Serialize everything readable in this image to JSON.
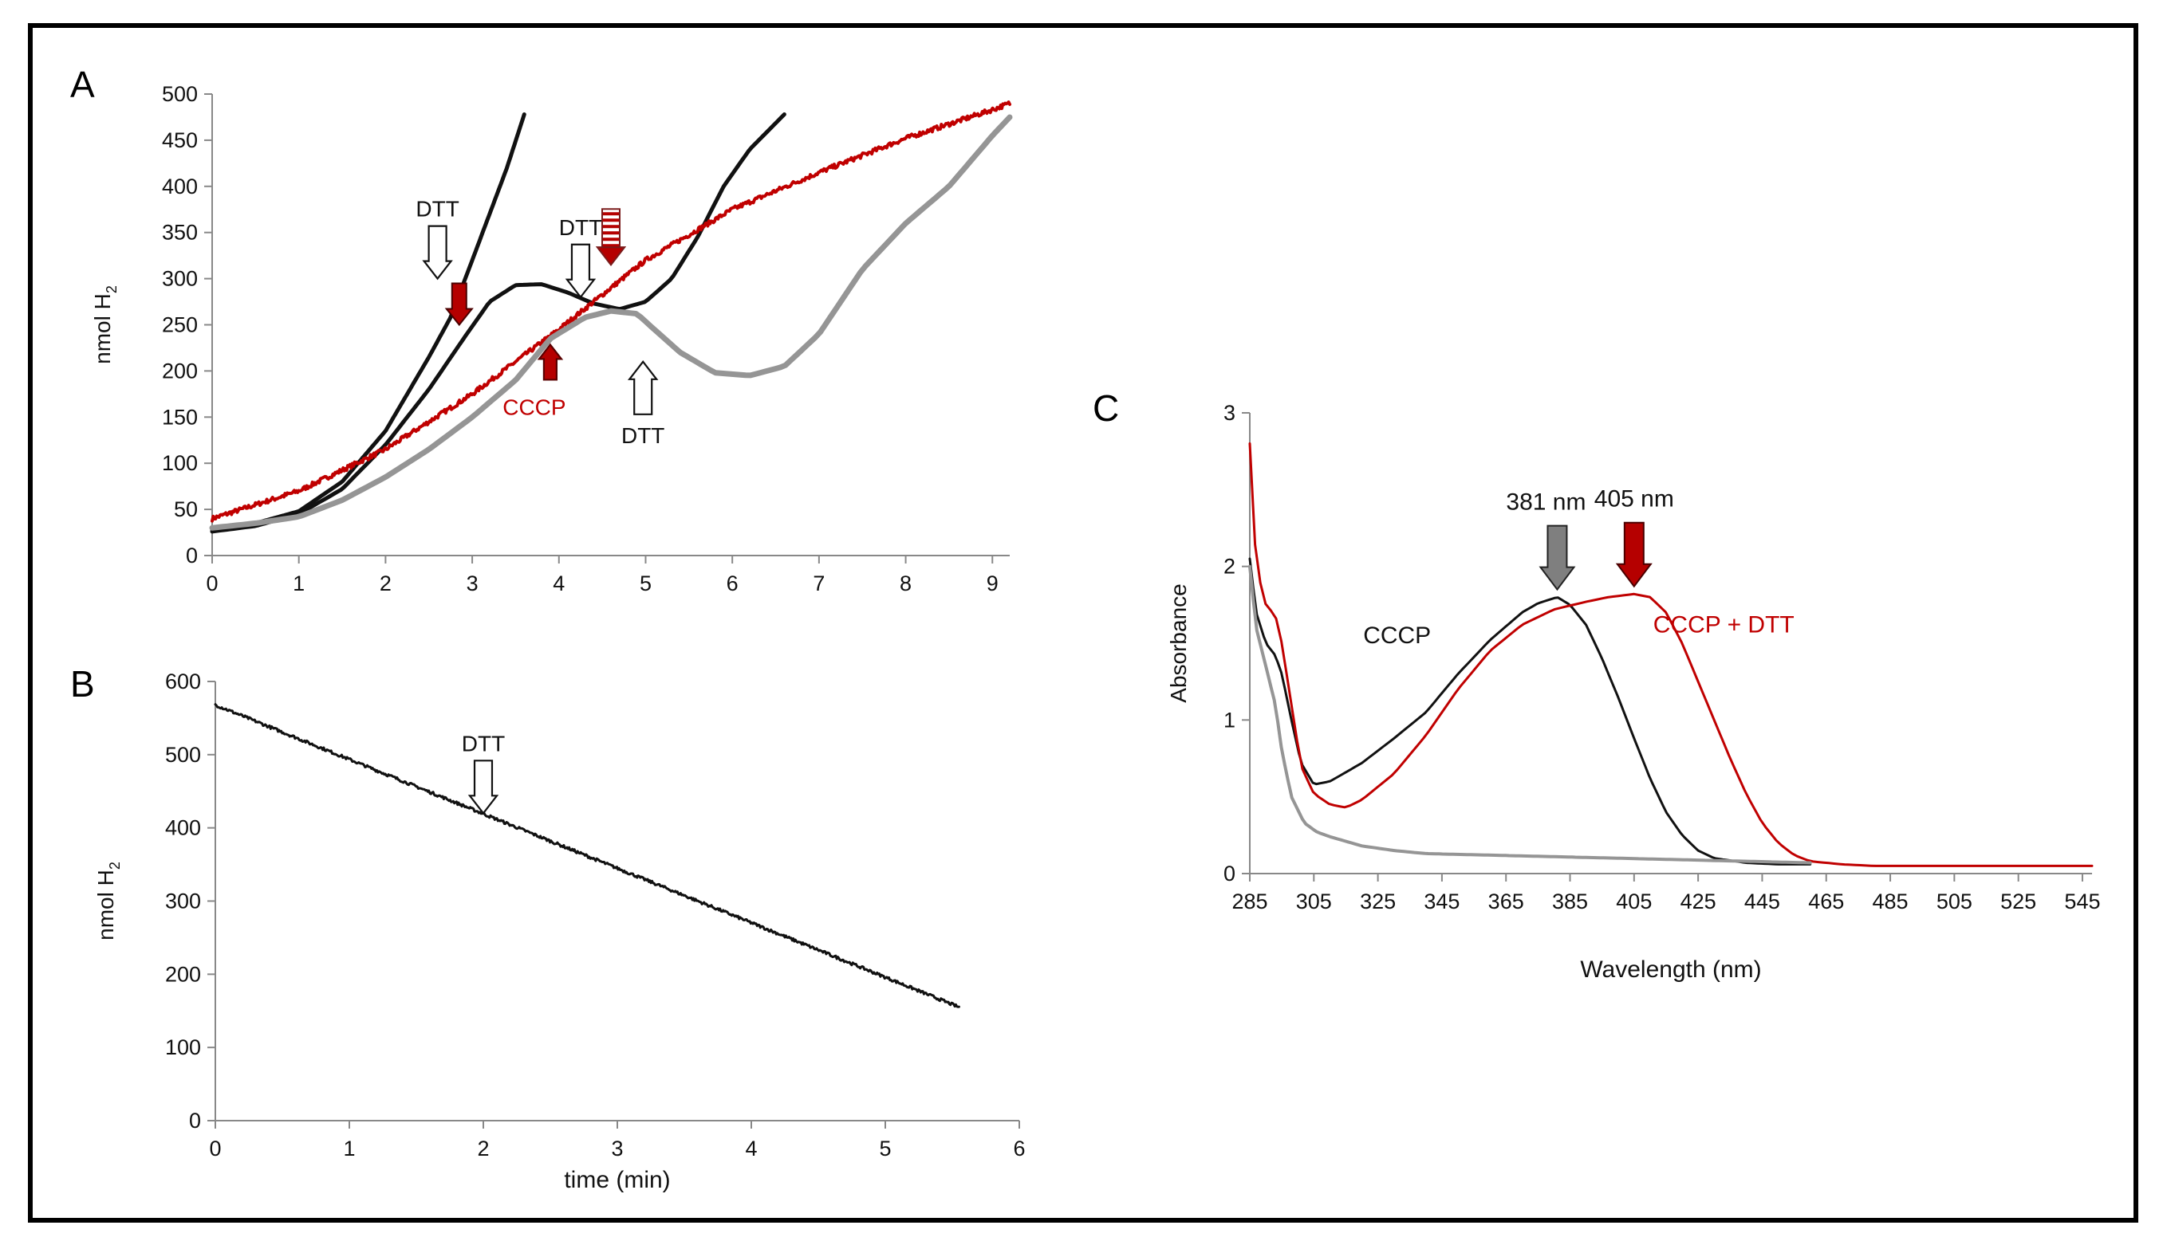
{
  "colors": {
    "black": "#111111",
    "red": "#c00000",
    "gray": "#959595",
    "darkred": "#b50000"
  },
  "chart_data": [
    {
      "panel": "A",
      "type": "line",
      "ylabel": "nmol H",
      "ylabel_sub": "2",
      "xlabel": "",
      "xlim": [
        0,
        9.2
      ],
      "ylim": [
        0,
        500
      ],
      "xticks": [
        0,
        1,
        2,
        3,
        4,
        5,
        6,
        7,
        8,
        9
      ],
      "yticks": [
        0,
        50,
        100,
        150,
        200,
        250,
        300,
        350,
        400,
        450,
        500
      ],
      "series": [
        {
          "name": "black trace 1",
          "color": "#111111",
          "width": 5,
          "noise": 0,
          "x": [
            0,
            0.5,
            1.0,
            1.5,
            2.0,
            2.5,
            2.75,
            3.0,
            3.2,
            3.4,
            3.6
          ],
          "y": [
            28,
            35,
            48,
            80,
            135,
            215,
            258,
            320,
            370,
            420,
            478
          ]
        },
        {
          "name": "black trace 2",
          "color": "#111111",
          "width": 5,
          "noise": 0,
          "x": [
            0,
            0.5,
            1.0,
            1.5,
            2.0,
            2.5,
            2.9,
            3.2,
            3.5,
            3.8,
            4.1,
            4.4,
            4.7,
            5.0,
            5.3,
            5.6,
            5.9,
            6.2,
            6.6
          ],
          "y": [
            26,
            32,
            45,
            72,
            120,
            180,
            235,
            275,
            293,
            294,
            285,
            273,
            267,
            275,
            300,
            345,
            400,
            440,
            478
          ]
        },
        {
          "name": "red trace",
          "color": "#c00000",
          "width": 4,
          "noise": 2.5,
          "x": [
            0,
            1,
            2,
            3,
            4,
            5,
            6,
            7,
            8,
            9,
            9.2
          ],
          "y": [
            40,
            70,
            115,
            175,
            245,
            320,
            375,
            415,
            452,
            483,
            490
          ]
        },
        {
          "name": "gray trace",
          "color": "#959595",
          "width": 7,
          "noise": 0,
          "x": [
            0,
            0.5,
            1.0,
            1.5,
            2.0,
            2.5,
            3.0,
            3.5,
            3.9,
            4.3,
            4.6,
            4.9,
            5.1,
            5.4,
            5.8,
            6.2,
            6.6,
            7.0,
            7.5,
            8.0,
            8.5,
            9.0,
            9.2
          ],
          "y": [
            30,
            35,
            42,
            60,
            85,
            115,
            150,
            190,
            235,
            258,
            265,
            262,
            245,
            220,
            198,
            195,
            205,
            240,
            310,
            360,
            400,
            455,
            475
          ]
        }
      ],
      "annotations": [
        {
          "label": "DTT",
          "kind": "arrow-down",
          "x": 2.6,
          "y": 300
        },
        {
          "label": "DTT",
          "kind": "arrow-down",
          "x": 4.25,
          "y": 280
        },
        {
          "label": "CCCP",
          "kind": "arrow-up",
          "x": 3.9,
          "y": 225
        },
        {
          "label": "DTT",
          "kind": "arrow-up",
          "x": 4.97,
          "y": 210
        },
        {
          "label": "",
          "kind": "red-arrow-down",
          "x": 2.85,
          "y": 250
        },
        {
          "label": "",
          "kind": "striped-arrow-down",
          "x": 4.6,
          "y": 315
        }
      ]
    },
    {
      "panel": "B",
      "type": "line",
      "ylabel": "nmol H",
      "ylabel_sub": "2",
      "xlabel": "time (min)",
      "xlim": [
        0,
        6
      ],
      "ylim": [
        0,
        600
      ],
      "xticks": [
        0,
        1,
        2,
        3,
        4,
        5,
        6
      ],
      "yticks": [
        0,
        100,
        200,
        300,
        400,
        500,
        600
      ],
      "series": [
        {
          "name": "hydrogen consumption",
          "color": "#111111",
          "width": 3,
          "noise": 2,
          "x": [
            0,
            5.55
          ],
          "y": [
            568,
            155
          ]
        }
      ],
      "annotations": [
        {
          "label": "DTT",
          "kind": "arrow-down",
          "x": 2.0,
          "y": 420
        }
      ]
    },
    {
      "panel": "C",
      "type": "line",
      "ylabel": "Absorbance",
      "xlabel": "Wavelength (nm)",
      "xlim": [
        285,
        548
      ],
      "ylim": [
        0,
        3
      ],
      "xticks": [
        285,
        305,
        325,
        345,
        365,
        385,
        405,
        425,
        445,
        465,
        485,
        505,
        525,
        545
      ],
      "yticks": [
        0,
        1,
        2,
        3
      ],
      "series": [
        {
          "name": "CCCP",
          "color": "#111111",
          "width": 3,
          "noise": 0,
          "x": [
            285,
            287,
            290,
            293,
            295,
            298,
            301,
            305,
            310,
            320,
            330,
            340,
            350,
            360,
            370,
            375,
            381,
            385,
            390,
            395,
            400,
            405,
            410,
            415,
            420,
            425,
            430,
            440,
            450,
            460
          ],
          "y": [
            2.05,
            1.7,
            1.5,
            1.42,
            1.3,
            1.0,
            0.72,
            0.58,
            0.6,
            0.72,
            0.88,
            1.05,
            1.3,
            1.52,
            1.7,
            1.76,
            1.8,
            1.75,
            1.62,
            1.4,
            1.15,
            0.88,
            0.62,
            0.4,
            0.25,
            0.15,
            0.1,
            0.07,
            0.06,
            0.06
          ]
        },
        {
          "name": "CCCP + DTT",
          "color": "#c00000",
          "width": 3,
          "noise": 0,
          "x": [
            285,
            287,
            290,
            293,
            295,
            298,
            301,
            305,
            310,
            315,
            320,
            330,
            340,
            350,
            360,
            370,
            380,
            390,
            397,
            405,
            410,
            415,
            420,
            425,
            430,
            435,
            440,
            445,
            450,
            455,
            460,
            470,
            480,
            500,
            548
          ],
          "y": [
            2.8,
            2.0,
            1.75,
            1.68,
            1.5,
            1.1,
            0.7,
            0.52,
            0.45,
            0.43,
            0.48,
            0.65,
            0.9,
            1.2,
            1.45,
            1.62,
            1.72,
            1.77,
            1.8,
            1.82,
            1.8,
            1.7,
            1.5,
            1.25,
            1.0,
            0.75,
            0.52,
            0.33,
            0.2,
            0.12,
            0.08,
            0.06,
            0.05,
            0.05,
            0.05
          ]
        },
        {
          "name": "blank",
          "color": "#959595",
          "width": 4,
          "noise": 0,
          "x": [
            285,
            287,
            290,
            293,
            295,
            298,
            302,
            306,
            310,
            320,
            330,
            340,
            360,
            380,
            400,
            420,
            440,
            460
          ],
          "y": [
            2.0,
            1.6,
            1.35,
            1.1,
            0.8,
            0.5,
            0.33,
            0.27,
            0.24,
            0.18,
            0.15,
            0.13,
            0.12,
            0.11,
            0.1,
            0.09,
            0.08,
            0.07
          ]
        }
      ],
      "annotations": [
        {
          "label": "381 nm",
          "kind": "gray-arrow-down",
          "x": 381,
          "y": 1.85
        },
        {
          "label": "405 nm",
          "kind": "red-arrow-down",
          "x": 405,
          "y": 1.87
        },
        {
          "label": "CCCP",
          "kind": "text",
          "x": 331,
          "y": 1.5
        },
        {
          "label": "CCCP + DTT",
          "kind": "red-text",
          "x": 433,
          "y": 1.57
        }
      ]
    }
  ]
}
